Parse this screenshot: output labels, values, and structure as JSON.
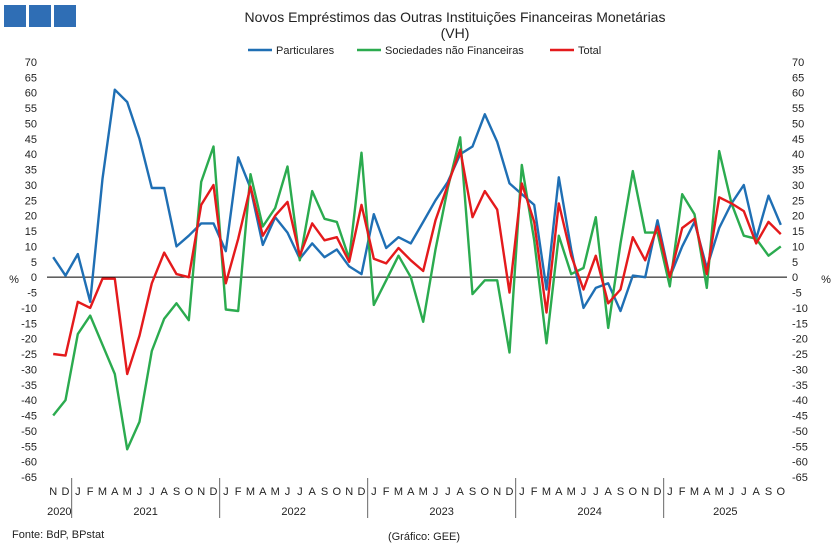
{
  "chart_data": {
    "type": "line",
    "title": "Novos Empréstimos das Outras Instituições Financeiras Monetárias",
    "subtitle": "(VH)",
    "ylabel_left": "%",
    "ylabel_right": "%",
    "ylim": [
      -65,
      70
    ],
    "ytick_step": 5,
    "grid": false,
    "legend_position": "top-center",
    "source": "Fonte: BdP, BPstat",
    "credit": "(Gráfico: GEE)",
    "month_labels": [
      "N",
      "D",
      "J",
      "F",
      "M",
      "A",
      "M",
      "J",
      "J",
      "A",
      "S",
      "O",
      "N",
      "D",
      "J",
      "F",
      "M",
      "A",
      "M",
      "J",
      "J",
      "A",
      "S",
      "O",
      "N",
      "D",
      "J",
      "F",
      "M",
      "A",
      "M",
      "J",
      "J",
      "A",
      "S",
      "O",
      "N",
      "D",
      "J",
      "F",
      "M",
      "A",
      "M",
      "J",
      "J",
      "A",
      "S",
      "O",
      "N",
      "D",
      "J",
      "F",
      "M",
      "A",
      "M",
      "J",
      "J",
      "A",
      "S",
      "O"
    ],
    "years": [
      {
        "label": "2020",
        "start": 0,
        "count": 2
      },
      {
        "label": "2021",
        "start": 2,
        "count": 12
      },
      {
        "label": "2022",
        "start": 14,
        "count": 12
      },
      {
        "label": "2023",
        "start": 26,
        "count": 12
      },
      {
        "label": "2024",
        "start": 38,
        "count": 12
      },
      {
        "label": "2025",
        "start": 50,
        "count": 10
      }
    ],
    "series": [
      {
        "name": "Particulares",
        "color": "#1f6fb4",
        "values": [
          6.5,
          0.5,
          7.5,
          -8,
          32,
          61,
          57,
          45,
          29,
          29,
          10,
          13.5,
          17.5,
          17.5,
          8.5,
          39,
          29,
          10.5,
          19.5,
          14.5,
          6,
          11,
          6.5,
          9,
          3.5,
          1,
          20.5,
          9.5,
          13,
          11,
          18,
          25,
          31,
          40,
          42.5,
          53,
          44,
          30.5,
          27,
          23.5,
          -4,
          32.5,
          9,
          -10,
          -3.5,
          -2,
          -11,
          0.5,
          0,
          18.5,
          0,
          10,
          18,
          3,
          16,
          24,
          30,
          12.5,
          26.5,
          17
        ]
      },
      {
        "name": "Sociedades não Financeiras",
        "color": "#2bab4f",
        "values": [
          -45,
          -40,
          -18.5,
          -12.5,
          -22,
          -31.5,
          -56,
          -47,
          -24,
          -13.5,
          -8.5,
          -14,
          31,
          42.5,
          -10.5,
          -11,
          33.5,
          16.5,
          22.5,
          36,
          5.5,
          28,
          19,
          18,
          6,
          40.5,
          -9,
          -1,
          7,
          0,
          -14.5,
          9,
          29,
          45.5,
          -5.5,
          -1,
          -1,
          -24.5,
          36.5,
          12,
          -21.5,
          13.5,
          1,
          3,
          19.5,
          -16.5,
          11,
          34.5,
          14.5,
          14.5,
          -3,
          27,
          20.5,
          -3.5,
          41,
          24,
          13.5,
          12.5,
          7,
          10
        ]
      },
      {
        "name": "Total",
        "color": "#e41a1c",
        "values": [
          -25,
          -25.5,
          -8,
          -10,
          -0.5,
          -0.5,
          -31.5,
          -19,
          -2,
          8,
          1,
          0,
          23.5,
          30,
          -2,
          12.5,
          29.5,
          13.5,
          20,
          24.5,
          7,
          17.5,
          12,
          13,
          5,
          23.5,
          6,
          4.5,
          9.5,
          5.5,
          2,
          18.5,
          30,
          41.5,
          19.5,
          28,
          22,
          -5,
          30.5,
          18,
          -11.5,
          24,
          7,
          -4,
          7,
          -8.5,
          -4,
          13,
          5.5,
          16.5,
          0,
          16,
          19,
          1,
          26,
          24,
          21.5,
          11,
          18,
          14
        ]
      }
    ]
  }
}
